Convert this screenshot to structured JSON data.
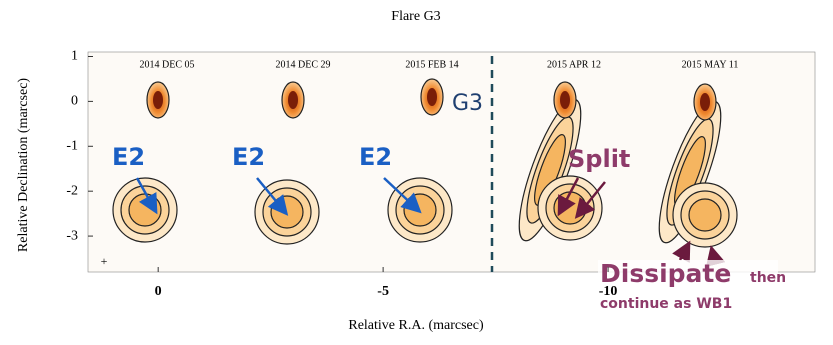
{
  "chart_data": {
    "type": "image-panels",
    "title": "Flare G3",
    "xlabel": "Relative R.A. (marcsec)",
    "ylabel": "Relative Declination (marcsec)",
    "xlim": [
      1.56,
      -14.6
    ],
    "ylim": [
      -3.8,
      1.1
    ],
    "xticks": [
      0,
      -5,
      -10
    ],
    "yticks": [
      1,
      0,
      -1,
      -2,
      -3
    ],
    "panels": [
      "2014 DEC 05",
      "2014 DEC 29",
      "2015 FEB 14",
      "2015 APR 12",
      "2015 MAY 11"
    ],
    "annotations": {
      "e2": "E2",
      "g3": "G3",
      "split": "Split",
      "dissipate": "Dissipate",
      "then": "then",
      "continue": "continue as WB1"
    }
  }
}
